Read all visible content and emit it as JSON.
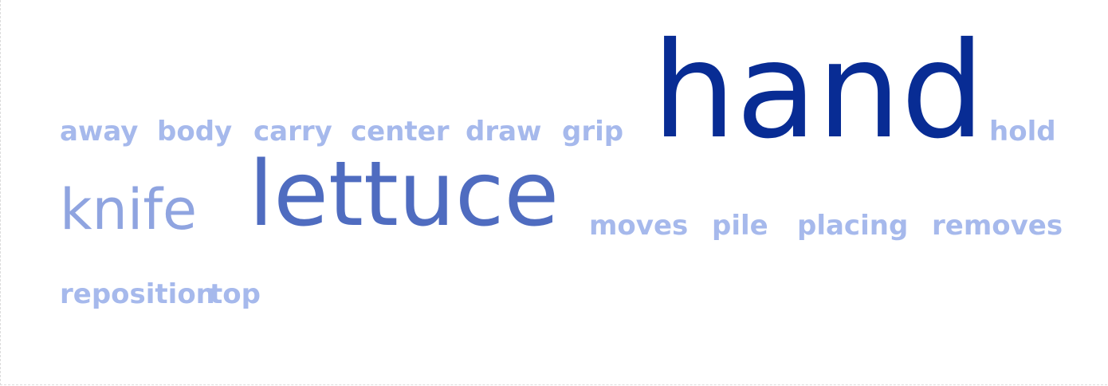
{
  "word_cloud": {
    "words": [
      {
        "text": "away",
        "tier": 1
      },
      {
        "text": "body",
        "tier": 1
      },
      {
        "text": "carry",
        "tier": 1
      },
      {
        "text": "center",
        "tier": 1
      },
      {
        "text": "draw",
        "tier": 1
      },
      {
        "text": "grip",
        "tier": 1
      },
      {
        "text": "hand",
        "tier": 4
      },
      {
        "text": "hold",
        "tier": 1
      },
      {
        "text": "knife",
        "tier": 2
      },
      {
        "text": "lettuce",
        "tier": 3
      },
      {
        "text": "moves",
        "tier": 1
      },
      {
        "text": "pile",
        "tier": 1
      },
      {
        "text": "placing",
        "tier": 1
      },
      {
        "text": "removes",
        "tier": 1
      },
      {
        "text": "reposition",
        "tier": 1
      },
      {
        "text": "top",
        "tier": 1
      }
    ],
    "colors": {
      "tier1": "#a6b9ec",
      "tier2": "#8fa4e0",
      "tier3": "#4f6cc0",
      "tier4": "#082c94"
    }
  }
}
